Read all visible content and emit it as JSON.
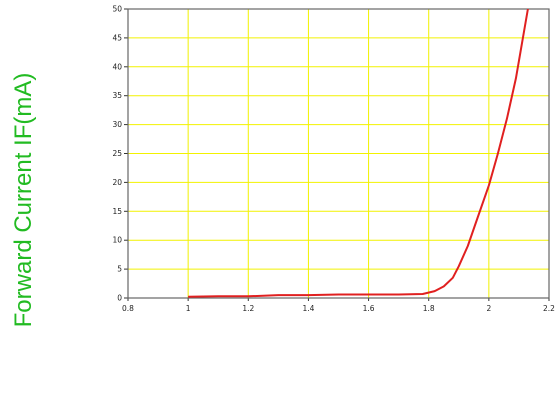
{
  "chart_data": {
    "type": "line",
    "ylabel": "Forward Current IF(mA)",
    "xlabel": "",
    "xlim": [
      0.8,
      2.2
    ],
    "ylim": [
      0,
      50
    ],
    "x_ticks": [
      "0.8",
      "1",
      "1.2",
      "1.4",
      "1.6",
      "1.8",
      "2",
      "2.2"
    ],
    "y_ticks": [
      "0",
      "5",
      "10",
      "15",
      "20",
      "25",
      "30",
      "35",
      "40",
      "45",
      "50"
    ],
    "grid": true,
    "series": [
      {
        "points": [
          [
            1.0,
            0.2
          ],
          [
            1.1,
            0.3
          ],
          [
            1.2,
            0.3
          ],
          [
            1.3,
            0.5
          ],
          [
            1.4,
            0.5
          ],
          [
            1.5,
            0.6
          ],
          [
            1.6,
            0.6
          ],
          [
            1.7,
            0.6
          ],
          [
            1.78,
            0.7
          ],
          [
            1.82,
            1.2
          ],
          [
            1.85,
            2.0
          ],
          [
            1.88,
            3.5
          ],
          [
            1.9,
            5.5
          ],
          [
            1.93,
            9.0
          ],
          [
            1.96,
            13.5
          ],
          [
            2.0,
            19.5
          ],
          [
            2.03,
            25.0
          ],
          [
            2.06,
            31.0
          ],
          [
            2.09,
            38.0
          ],
          [
            2.11,
            44.0
          ],
          [
            2.13,
            50.0
          ]
        ]
      }
    ],
    "colors": {
      "line": "#e02020",
      "grid": "#f2f200",
      "plot_border": "#666666",
      "ylabel": "#22bb22"
    }
  }
}
